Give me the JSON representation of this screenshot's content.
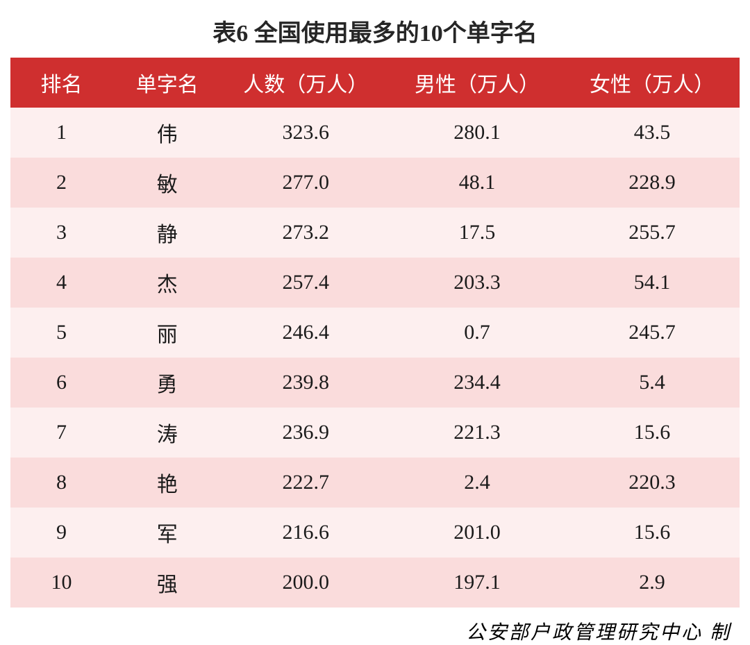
{
  "table": {
    "type": "table",
    "title": "表6 全国使用最多的10个单字名",
    "title_fontsize": 34,
    "header_bg_color": "#cf2f2f",
    "header_text_color": "#ffffff",
    "row_odd_bg_color": "#fdefef",
    "row_even_bg_color": "#fadcdc",
    "cell_text_color": "#1a1a1a",
    "cell_fontsize": 30,
    "header_fontsize": 30,
    "columns": [
      {
        "key": "rank",
        "label": "排名",
        "width_pct": 14
      },
      {
        "key": "name",
        "label": "单字名",
        "width_pct": 15
      },
      {
        "key": "total",
        "label": "人数（万人）",
        "width_pct": 23
      },
      {
        "key": "male",
        "label": "男性（万人）",
        "width_pct": 24
      },
      {
        "key": "female",
        "label": "女性（万人）",
        "width_pct": 24
      }
    ],
    "rows": [
      {
        "rank": "1",
        "name": "伟",
        "total": "323.6",
        "male": "280.1",
        "female": "43.5"
      },
      {
        "rank": "2",
        "name": "敏",
        "total": "277.0",
        "male": "48.1",
        "female": "228.9"
      },
      {
        "rank": "3",
        "name": "静",
        "total": "273.2",
        "male": "17.5",
        "female": "255.7"
      },
      {
        "rank": "4",
        "name": "杰",
        "total": "257.4",
        "male": "203.3",
        "female": "54.1"
      },
      {
        "rank": "5",
        "name": "丽",
        "total": "246.4",
        "male": "0.7",
        "female": "245.7"
      },
      {
        "rank": "6",
        "name": "勇",
        "total": "239.8",
        "male": "234.4",
        "female": "5.4"
      },
      {
        "rank": "7",
        "name": "涛",
        "total": "236.9",
        "male": "221.3",
        "female": "15.6"
      },
      {
        "rank": "8",
        "name": "艳",
        "total": "222.7",
        "male": "2.4",
        "female": "220.3"
      },
      {
        "rank": "9",
        "name": "军",
        "total": "216.6",
        "male": "201.0",
        "female": "15.6"
      },
      {
        "rank": "10",
        "name": "强",
        "total": "200.0",
        "male": "197.1",
        "female": "2.9"
      }
    ]
  },
  "footer": {
    "text": "公安部户政管理研究中心 制",
    "fontsize": 28,
    "font_style": "italic"
  }
}
